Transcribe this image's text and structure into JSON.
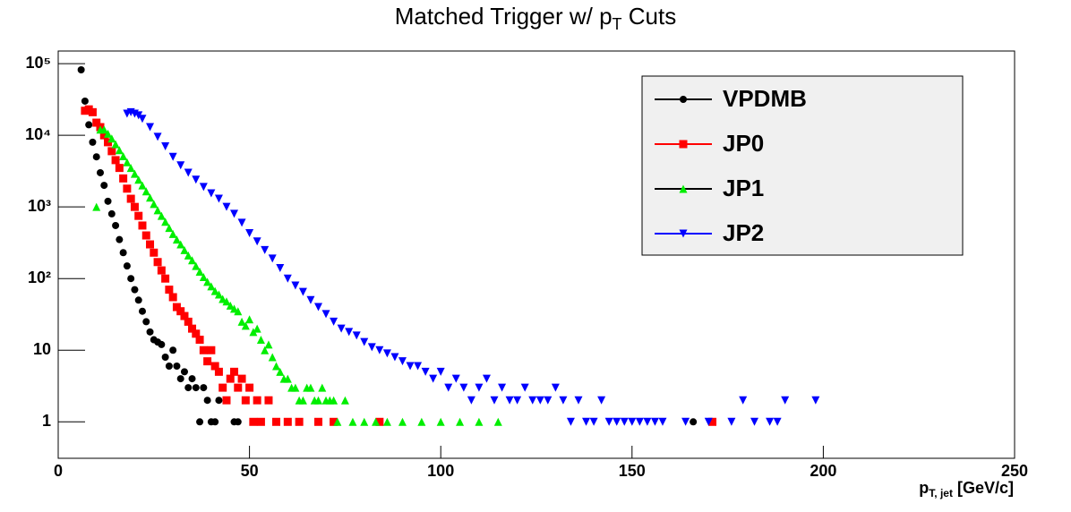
{
  "chart_data": {
    "type": "scatter",
    "title": [
      "Matched Trigger w/ p",
      "T",
      " Cuts"
    ],
    "x_label": [
      "p",
      "T, jet",
      " [GeV/c]"
    ],
    "xlim": [
      0,
      250
    ],
    "xticks": [
      0,
      50,
      100,
      150,
      200,
      250
    ],
    "ylim": [
      0.31,
      150000
    ],
    "yscale": "log",
    "yticks": [
      1,
      10,
      {
        "value": 100,
        "label": "10²"
      },
      {
        "value": 1000,
        "label": "10³"
      },
      {
        "value": 10000,
        "label": "10⁴"
      },
      {
        "value": 100000,
        "label": "10⁵"
      }
    ],
    "legend": "upper right",
    "series": [
      {
        "name": "VPDMB",
        "color": "#000000",
        "marker": "circle",
        "x": [
          6,
          7,
          8,
          9,
          10,
          11,
          12,
          13,
          14,
          15,
          16,
          17,
          18,
          19,
          20,
          21,
          22,
          23,
          24,
          25,
          26,
          27,
          28,
          29,
          30,
          31,
          32,
          33,
          34,
          35,
          36,
          37,
          38,
          39,
          40,
          41,
          42,
          46,
          47,
          166
        ],
        "values": [
          82000,
          30000,
          14000,
          8000,
          5000,
          3000,
          2000,
          1200,
          800,
          550,
          350,
          230,
          150,
          100,
          70,
          50,
          35,
          25,
          18,
          14,
          13,
          12,
          8,
          6,
          10,
          6,
          4,
          5,
          3,
          4,
          3,
          1,
          3,
          2,
          1,
          1,
          2,
          1,
          1,
          1
        ]
      },
      {
        "name": "JP0",
        "color": "#ff0000",
        "marker": "square",
        "x": [
          7,
          8,
          9,
          10,
          11,
          12,
          13,
          14,
          15,
          16,
          17,
          18,
          19,
          20,
          21,
          22,
          23,
          24,
          25,
          26,
          27,
          28,
          29,
          30,
          31,
          32,
          33,
          34,
          35,
          36,
          37,
          38,
          39,
          40,
          41,
          42,
          43,
          44,
          45,
          46,
          47,
          48,
          49,
          50,
          51,
          52,
          53,
          55,
          57,
          60,
          63,
          68,
          72,
          84,
          171
        ],
        "values": [
          22000,
          23000,
          21000,
          15000,
          13000,
          10000,
          8000,
          6000,
          4500,
          3500,
          2500,
          1800,
          1300,
          1000,
          750,
          550,
          400,
          300,
          230,
          170,
          130,
          100,
          70,
          55,
          40,
          35,
          30,
          25,
          20,
          17,
          14,
          10,
          7,
          10,
          6,
          5,
          3,
          2,
          4,
          5,
          3,
          4,
          2,
          3,
          1,
          2,
          1,
          2,
          1,
          1,
          1,
          1,
          1,
          1,
          1
        ]
      },
      {
        "name": "JP1",
        "color": "#00ee00",
        "marker": "triangle-up",
        "x": [
          10,
          11,
          12,
          13,
          14,
          15,
          16,
          17,
          18,
          19,
          20,
          21,
          22,
          23,
          24,
          25,
          26,
          27,
          28,
          29,
          30,
          31,
          32,
          33,
          34,
          35,
          36,
          37,
          38,
          39,
          40,
          41,
          42,
          43,
          44,
          45,
          46,
          47,
          48,
          49,
          50,
          51,
          52,
          53,
          54,
          55,
          56,
          57,
          58,
          59,
          60,
          61,
          62,
          63,
          64,
          65,
          66,
          67,
          68,
          69,
          70,
          71,
          72,
          73,
          75,
          77,
          80,
          83,
          86,
          90,
          95,
          100,
          105,
          110,
          115
        ],
        "values": [
          1000,
          12000,
          12000,
          10500,
          9000,
          7500,
          6200,
          5100,
          4200,
          3500,
          2900,
          2400,
          2000,
          1650,
          1350,
          1100,
          900,
          750,
          620,
          510,
          420,
          350,
          300,
          250,
          210,
          180,
          150,
          125,
          105,
          90,
          78,
          67,
          60,
          52,
          48,
          42,
          38,
          35,
          25,
          22,
          27,
          18,
          20,
          14,
          10,
          12,
          8,
          6,
          5,
          4,
          4,
          3,
          3,
          2,
          2,
          3,
          3,
          2,
          2,
          3,
          2,
          2,
          2,
          1,
          2,
          1,
          1,
          1,
          1,
          1,
          1,
          1,
          1,
          1,
          1
        ]
      },
      {
        "name": "JP2",
        "color": "#0000ff",
        "marker": "triangle-down",
        "x": [
          18,
          19,
          20,
          21,
          22,
          24,
          26,
          28,
          30,
          32,
          34,
          36,
          38,
          40,
          42,
          44,
          46,
          48,
          50,
          52,
          54,
          56,
          58,
          60,
          62,
          64,
          66,
          68,
          70,
          72,
          74,
          76,
          78,
          80,
          82,
          84,
          86,
          88,
          90,
          92,
          94,
          96,
          98,
          100,
          102,
          104,
          106,
          108,
          110,
          112,
          114,
          116,
          118,
          120,
          122,
          124,
          126,
          128,
          130,
          132,
          134,
          136,
          138,
          140,
          142,
          144,
          146,
          148,
          150,
          152,
          154,
          156,
          158,
          164,
          170,
          176,
          179,
          182,
          186,
          188,
          190,
          198
        ],
        "values": [
          20000,
          21000,
          20000,
          19000,
          17000,
          13000,
          9500,
          7000,
          5000,
          3800,
          3000,
          2400,
          1900,
          1550,
          1300,
          1000,
          800,
          600,
          430,
          330,
          250,
          190,
          140,
          100,
          80,
          65,
          50,
          40,
          32,
          25,
          20,
          18,
          16,
          13,
          11,
          10,
          9,
          8,
          7,
          6,
          6,
          5,
          4,
          5,
          3,
          4,
          3,
          2,
          3,
          4,
          2,
          3,
          2,
          2,
          3,
          2,
          2,
          2,
          3,
          2,
          1,
          2,
          1,
          1,
          2,
          1,
          1,
          1,
          1,
          1,
          1,
          1,
          1,
          1,
          1,
          1,
          2,
          1,
          1,
          1,
          2,
          2
        ]
      }
    ]
  }
}
